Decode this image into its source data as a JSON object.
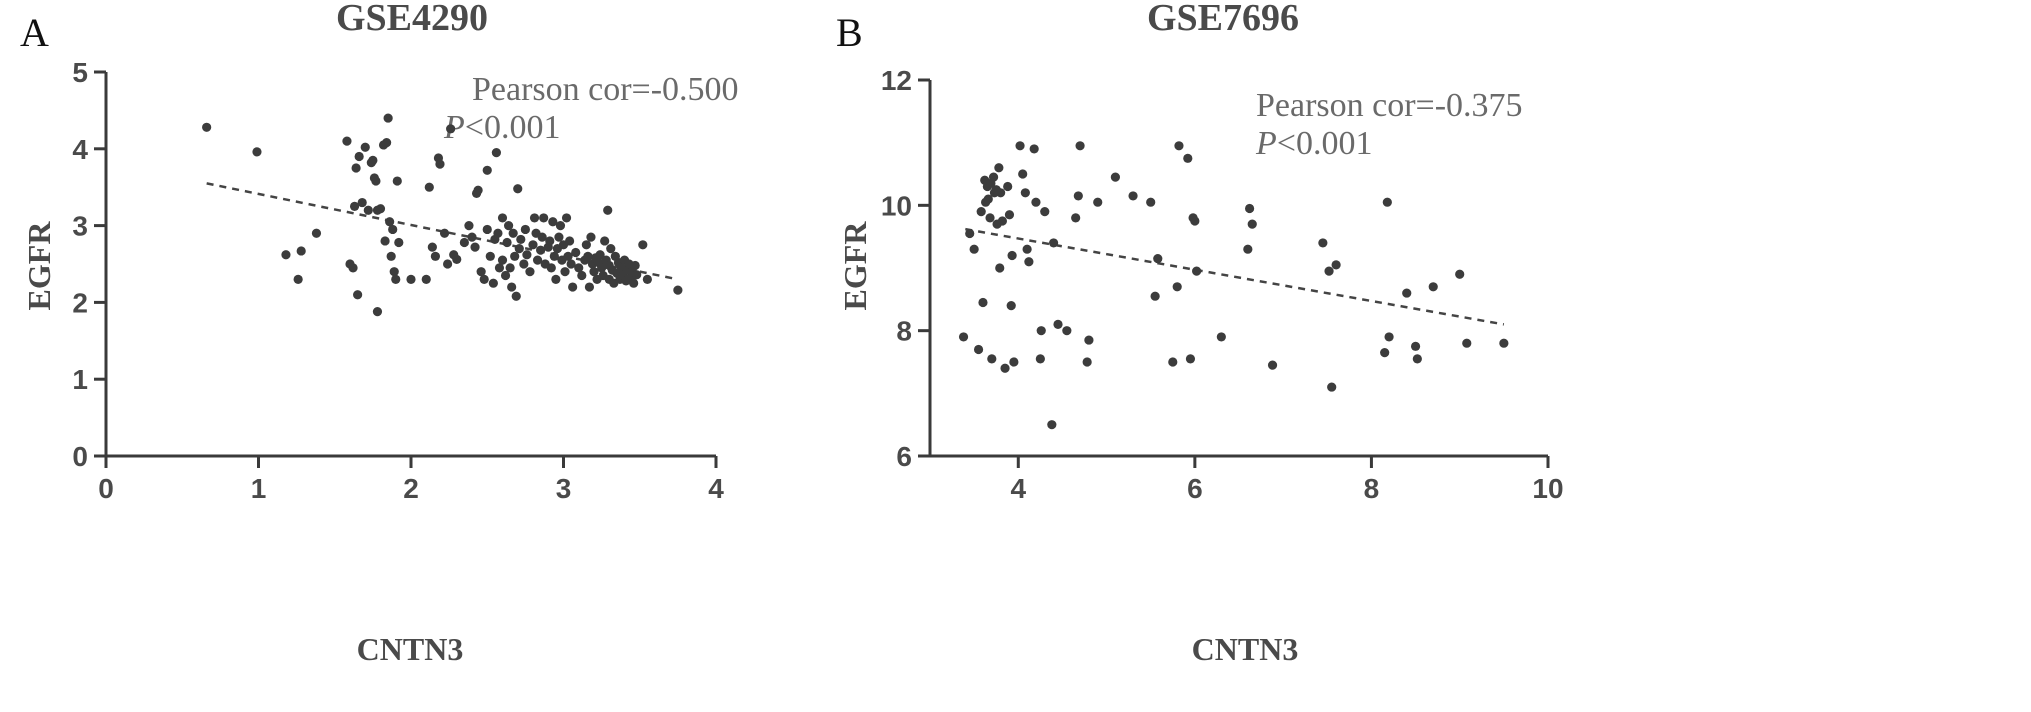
{
  "chart_data": [
    {
      "panel_label": "A",
      "type": "scatter",
      "title": "GSE4290",
      "xlabel": "CNTN3",
      "ylabel": "EGFR",
      "xlim": [
        0,
        4
      ],
      "ylim": [
        0,
        5
      ],
      "xticks": [
        "0",
        "1",
        "2",
        "3",
        "4"
      ],
      "yticks": [
        "0",
        "1",
        "2",
        "3",
        "4",
        "5"
      ],
      "annotation": {
        "line1": "Pearson cor=-0.500",
        "p_italic": "P",
        "p_rest": "<0.001"
      },
      "trendline": {
        "x": [
          0.66,
          3.75
        ],
        "y": [
          3.55,
          2.3
        ]
      },
      "points": [
        [
          0.66,
          4.28
        ],
        [
          0.99,
          3.96
        ],
        [
          1.18,
          2.62
        ],
        [
          1.26,
          2.3
        ],
        [
          1.28,
          2.67
        ],
        [
          1.38,
          2.9
        ],
        [
          1.58,
          4.1
        ],
        [
          1.6,
          2.5
        ],
        [
          1.62,
          2.45
        ],
        [
          1.63,
          3.25
        ],
        [
          1.64,
          3.75
        ],
        [
          1.65,
          2.1
        ],
        [
          1.66,
          3.9
        ],
        [
          1.68,
          3.3
        ],
        [
          1.7,
          4.02
        ],
        [
          1.72,
          3.2
        ],
        [
          1.74,
          3.82
        ],
        [
          1.75,
          3.85
        ],
        [
          1.76,
          3.62
        ],
        [
          1.77,
          3.58
        ],
        [
          1.78,
          3.2
        ],
        [
          1.78,
          1.88
        ],
        [
          1.8,
          3.22
        ],
        [
          1.82,
          4.05
        ],
        [
          1.83,
          2.8
        ],
        [
          1.84,
          4.08
        ],
        [
          1.85,
          4.4
        ],
        [
          1.86,
          3.05
        ],
        [
          1.87,
          2.6
        ],
        [
          1.88,
          2.95
        ],
        [
          1.89,
          2.4
        ],
        [
          1.9,
          2.3
        ],
        [
          1.91,
          3.58
        ],
        [
          1.92,
          2.78
        ],
        [
          2.0,
          2.3
        ],
        [
          2.1,
          2.3
        ],
        [
          2.12,
          3.5
        ],
        [
          2.14,
          2.72
        ],
        [
          2.16,
          2.6
        ],
        [
          2.18,
          3.88
        ],
        [
          2.19,
          3.8
        ],
        [
          2.22,
          2.9
        ],
        [
          2.24,
          2.5
        ],
        [
          2.26,
          4.26
        ],
        [
          2.28,
          2.62
        ],
        [
          2.3,
          2.56
        ],
        [
          2.35,
          2.78
        ],
        [
          2.38,
          3.0
        ],
        [
          2.4,
          2.85
        ],
        [
          2.42,
          2.72
        ],
        [
          2.43,
          3.42
        ],
        [
          2.44,
          3.46
        ],
        [
          2.46,
          2.4
        ],
        [
          2.48,
          2.3
        ],
        [
          2.5,
          2.95
        ],
        [
          2.5,
          3.72
        ],
        [
          2.52,
          2.6
        ],
        [
          2.54,
          2.25
        ],
        [
          2.55,
          2.82
        ],
        [
          2.56,
          3.95
        ],
        [
          2.57,
          2.9
        ],
        [
          2.58,
          2.45
        ],
        [
          2.6,
          3.1
        ],
        [
          2.6,
          2.55
        ],
        [
          2.62,
          2.35
        ],
        [
          2.63,
          2.78
        ],
        [
          2.64,
          3.0
        ],
        [
          2.65,
          2.45
        ],
        [
          2.66,
          2.2
        ],
        [
          2.67,
          2.9
        ],
        [
          2.68,
          2.6
        ],
        [
          2.69,
          2.08
        ],
        [
          2.7,
          3.48
        ],
        [
          2.71,
          2.7
        ],
        [
          2.72,
          2.82
        ],
        [
          2.74,
          2.5
        ],
        [
          2.75,
          2.95
        ],
        [
          2.76,
          2.62
        ],
        [
          2.78,
          2.4
        ],
        [
          2.8,
          2.75
        ],
        [
          2.81,
          3.1
        ],
        [
          2.82,
          2.9
        ],
        [
          2.83,
          2.55
        ],
        [
          2.85,
          2.68
        ],
        [
          2.86,
          2.85
        ],
        [
          2.87,
          3.1
        ],
        [
          2.88,
          2.5
        ],
        [
          2.9,
          2.72
        ],
        [
          2.91,
          2.8
        ],
        [
          2.92,
          2.45
        ],
        [
          2.93,
          3.05
        ],
        [
          2.94,
          2.6
        ],
        [
          2.95,
          2.3
        ],
        [
          2.96,
          2.7
        ],
        [
          2.97,
          2.85
        ],
        [
          2.98,
          3.0
        ],
        [
          2.99,
          2.55
        ],
        [
          3.0,
          2.75
        ],
        [
          3.01,
          2.4
        ],
        [
          3.02,
          3.1
        ],
        [
          3.03,
          2.6
        ],
        [
          3.04,
          2.8
        ],
        [
          3.05,
          2.5
        ],
        [
          3.06,
          2.2
        ],
        [
          3.08,
          2.65
        ],
        [
          3.1,
          2.45
        ],
        [
          3.12,
          2.35
        ],
        [
          3.14,
          2.55
        ],
        [
          3.15,
          2.75
        ],
        [
          3.16,
          2.6
        ],
        [
          3.17,
          2.2
        ],
        [
          3.18,
          2.85
        ],
        [
          3.19,
          2.5
        ],
        [
          3.2,
          2.4
        ],
        [
          3.21,
          2.58
        ],
        [
          3.22,
          2.3
        ],
        [
          3.23,
          2.52
        ],
        [
          3.24,
          2.62
        ],
        [
          3.25,
          2.45
        ],
        [
          3.26,
          2.35
        ],
        [
          3.27,
          2.8
        ],
        [
          3.28,
          2.55
        ],
        [
          3.29,
          3.2
        ],
        [
          3.3,
          2.48
        ],
        [
          3.3,
          2.3
        ],
        [
          3.31,
          2.7
        ],
        [
          3.32,
          2.42
        ],
        [
          3.33,
          2.25
        ],
        [
          3.34,
          2.6
        ],
        [
          3.35,
          2.38
        ],
        [
          3.36,
          2.52
        ],
        [
          3.37,
          2.3
        ],
        [
          3.38,
          2.45
        ],
        [
          3.39,
          2.35
        ],
        [
          3.4,
          2.55
        ],
        [
          3.41,
          2.28
        ],
        [
          3.42,
          2.42
        ],
        [
          3.43,
          2.5
        ],
        [
          3.44,
          2.32
        ],
        [
          3.45,
          2.4
        ],
        [
          3.46,
          2.25
        ],
        [
          3.47,
          2.48
        ],
        [
          3.48,
          2.36
        ],
        [
          3.52,
          2.75
        ],
        [
          3.55,
          2.3
        ],
        [
          3.75,
          2.16
        ]
      ]
    },
    {
      "panel_label": "B",
      "type": "scatter",
      "title": "GSE7696",
      "xlabel": "CNTN3",
      "ylabel": "EGFR",
      "xlim": [
        3,
        10
      ],
      "ylim": [
        6,
        12
      ],
      "xticks_values": [
        4,
        6,
        8,
        10
      ],
      "yticks_values": [
        6,
        8,
        10,
        12
      ],
      "xticks": [
        "4",
        "6",
        "8",
        "10"
      ],
      "yticks": [
        "6",
        "8",
        "10",
        "12"
      ],
      "annotation": {
        "line1": "Pearson cor=-0.375",
        "p_italic": "P",
        "p_rest": "<0.001"
      },
      "trendline": {
        "x": [
          3.4,
          9.5
        ],
        "y": [
          9.62,
          8.1
        ]
      },
      "points": [
        [
          3.38,
          7.9
        ],
        [
          3.45,
          9.55
        ],
        [
          3.5,
          9.3
        ],
        [
          3.55,
          7.7
        ],
        [
          3.58,
          9.9
        ],
        [
          3.6,
          8.45
        ],
        [
          3.62,
          10.4
        ],
        [
          3.63,
          10.05
        ],
        [
          3.65,
          10.3
        ],
        [
          3.66,
          10.1
        ],
        [
          3.68,
          9.8
        ],
        [
          3.69,
          10.35
        ],
        [
          3.7,
          7.55
        ],
        [
          3.72,
          10.45
        ],
        [
          3.73,
          10.2
        ],
        [
          3.75,
          10.25
        ],
        [
          3.76,
          9.7
        ],
        [
          3.78,
          10.6
        ],
        [
          3.79,
          9.0
        ],
        [
          3.8,
          10.2
        ],
        [
          3.82,
          9.75
        ],
        [
          3.85,
          7.4
        ],
        [
          3.88,
          10.3
        ],
        [
          3.9,
          9.85
        ],
        [
          3.92,
          8.4
        ],
        [
          3.93,
          9.2
        ],
        [
          3.95,
          7.5
        ],
        [
          4.02,
          10.95
        ],
        [
          4.05,
          10.5
        ],
        [
          4.08,
          10.2
        ],
        [
          4.1,
          9.3
        ],
        [
          4.12,
          9.1
        ],
        [
          4.18,
          10.9
        ],
        [
          4.2,
          10.05
        ],
        [
          4.25,
          7.55
        ],
        [
          4.26,
          8.0
        ],
        [
          4.3,
          9.9
        ],
        [
          4.38,
          6.5
        ],
        [
          4.4,
          9.4
        ],
        [
          4.45,
          8.1
        ],
        [
          4.55,
          8.0
        ],
        [
          4.65,
          9.8
        ],
        [
          4.68,
          10.15
        ],
        [
          4.7,
          10.95
        ],
        [
          4.78,
          7.5
        ],
        [
          4.8,
          7.85
        ],
        [
          4.9,
          10.05
        ],
        [
          5.1,
          10.45
        ],
        [
          5.3,
          10.15
        ],
        [
          5.5,
          10.05
        ],
        [
          5.55,
          8.55
        ],
        [
          5.58,
          9.15
        ],
        [
          5.75,
          7.5
        ],
        [
          5.8,
          8.7
        ],
        [
          5.82,
          10.95
        ],
        [
          5.92,
          10.75
        ],
        [
          5.95,
          7.55
        ],
        [
          5.98,
          9.8
        ],
        [
          6.0,
          9.75
        ],
        [
          6.02,
          8.95
        ],
        [
          6.3,
          7.9
        ],
        [
          6.6,
          9.3
        ],
        [
          6.62,
          9.95
        ],
        [
          6.65,
          9.7
        ],
        [
          6.88,
          7.45
        ],
        [
          7.45,
          9.4
        ],
        [
          7.52,
          8.95
        ],
        [
          7.55,
          7.1
        ],
        [
          7.6,
          9.05
        ],
        [
          8.15,
          7.65
        ],
        [
          8.18,
          10.05
        ],
        [
          8.2,
          7.9
        ],
        [
          8.4,
          8.6
        ],
        [
          8.5,
          7.75
        ],
        [
          8.52,
          7.55
        ],
        [
          8.7,
          8.7
        ],
        [
          9.0,
          8.9
        ],
        [
          9.08,
          7.8
        ],
        [
          9.5,
          7.8
        ]
      ]
    }
  ]
}
